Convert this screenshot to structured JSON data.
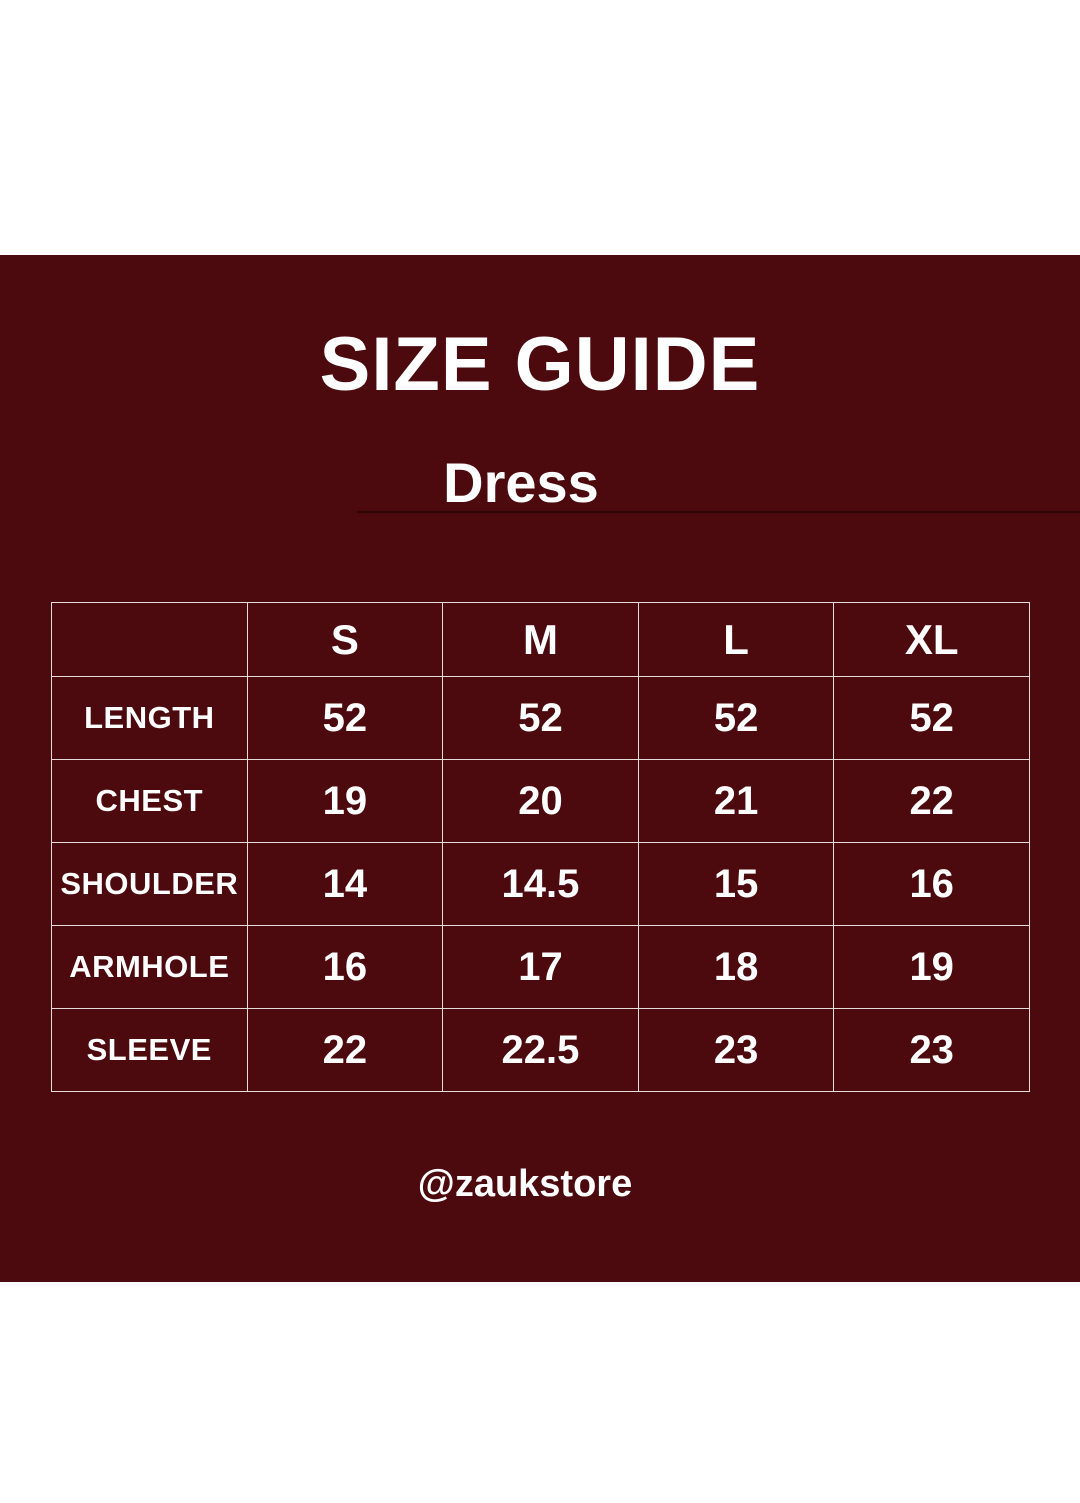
{
  "header": {
    "title": "SIZE GUIDE",
    "subtitle": "Dress"
  },
  "footer": {
    "handle": "@zaukstore"
  },
  "colors": {
    "page_background": "#ffffff",
    "panel_background": "#4C090E",
    "text": "#ffffff",
    "table_border": "#E5DCDC",
    "subtitle_underline": "#2E0507"
  },
  "size_table": {
    "columns": [
      "",
      "S",
      "M",
      "L",
      "XL"
    ],
    "rows": [
      {
        "label": "LENGTH",
        "values": [
          "52",
          "52",
          "52",
          "52"
        ]
      },
      {
        "label": "CHEST",
        "values": [
          "19",
          "20",
          "21",
          "22"
        ]
      },
      {
        "label": "SHOULDER",
        "values": [
          "14",
          "14.5",
          "15",
          "16"
        ]
      },
      {
        "label": "ARMHOLE",
        "values": [
          "16",
          "17",
          "18",
          "19"
        ]
      },
      {
        "label": "SLEEVE",
        "values": [
          "22",
          "22.5",
          "23",
          "23"
        ]
      }
    ]
  }
}
